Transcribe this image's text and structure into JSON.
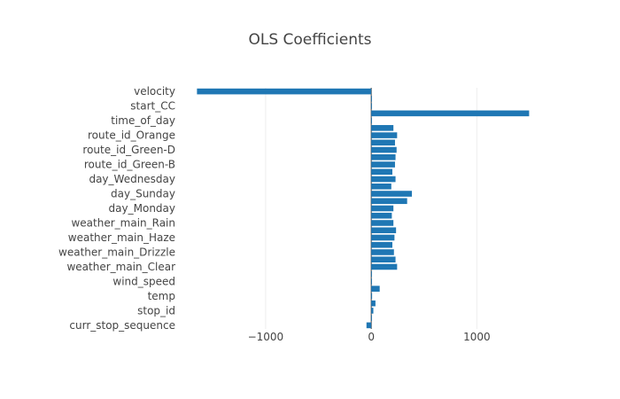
{
  "chart_data": {
    "type": "bar",
    "orientation": "horizontal",
    "title": "OLS Coefficients",
    "xlabel": "",
    "ylabel": "",
    "bar_color": "#1f77b4",
    "grid": true,
    "xlim": [
      -1670,
      1500
    ],
    "xticks": [
      -1000,
      0,
      1000
    ],
    "xtick_labels": [
      "−1000",
      "0",
      "1000"
    ],
    "categories_top_to_bottom_labels": [
      "velocity",
      "start_CC",
      "time_of_day",
      "route_id_Orange",
      "route_id_Green-D",
      "route_id_Green-B",
      "day_Wednesday",
      "day_Sunday",
      "day_Monday",
      "weather_main_Rain",
      "weather_main_Haze",
      "weather_main_Drizzle",
      "weather_main_Clear",
      "wind_speed",
      "temp",
      "stop_id",
      "curr_stop_sequence"
    ],
    "bars_top_to_bottom": [
      {
        "label": "velocity",
        "value": -1650
      },
      {
        "label": "",
        "value": 5
      },
      {
        "label": "start_CC",
        "value": 3
      },
      {
        "label": "",
        "value": 1495
      },
      {
        "label": "time_of_day",
        "value": 3
      },
      {
        "label": "",
        "value": 210
      },
      {
        "label": "route_id_Orange",
        "value": 245
      },
      {
        "label": "",
        "value": 225
      },
      {
        "label": "route_id_Green-D",
        "value": 240
      },
      {
        "label": "",
        "value": 230
      },
      {
        "label": "route_id_Green-B",
        "value": 225
      },
      {
        "label": "",
        "value": 200
      },
      {
        "label": "day_Wednesday",
        "value": 230
      },
      {
        "label": "",
        "value": 190
      },
      {
        "label": "day_Sunday",
        "value": 385
      },
      {
        "label": "",
        "value": 340
      },
      {
        "label": "day_Monday",
        "value": 210
      },
      {
        "label": "",
        "value": 195
      },
      {
        "label": "weather_main_Rain",
        "value": 210
      },
      {
        "label": "",
        "value": 235
      },
      {
        "label": "weather_main_Haze",
        "value": 220
      },
      {
        "label": "",
        "value": 200
      },
      {
        "label": "weather_main_Drizzle",
        "value": 215
      },
      {
        "label": "",
        "value": 230
      },
      {
        "label": "weather_main_Clear",
        "value": 245
      },
      {
        "label": "",
        "value": 5
      },
      {
        "label": "wind_speed",
        "value": 3
      },
      {
        "label": "",
        "value": 80
      },
      {
        "label": "temp",
        "value": 8
      },
      {
        "label": "",
        "value": 40
      },
      {
        "label": "stop_id",
        "value": 20
      },
      {
        "label": "",
        "value": 5
      },
      {
        "label": "curr_stop_sequence",
        "value": -45
      }
    ]
  }
}
